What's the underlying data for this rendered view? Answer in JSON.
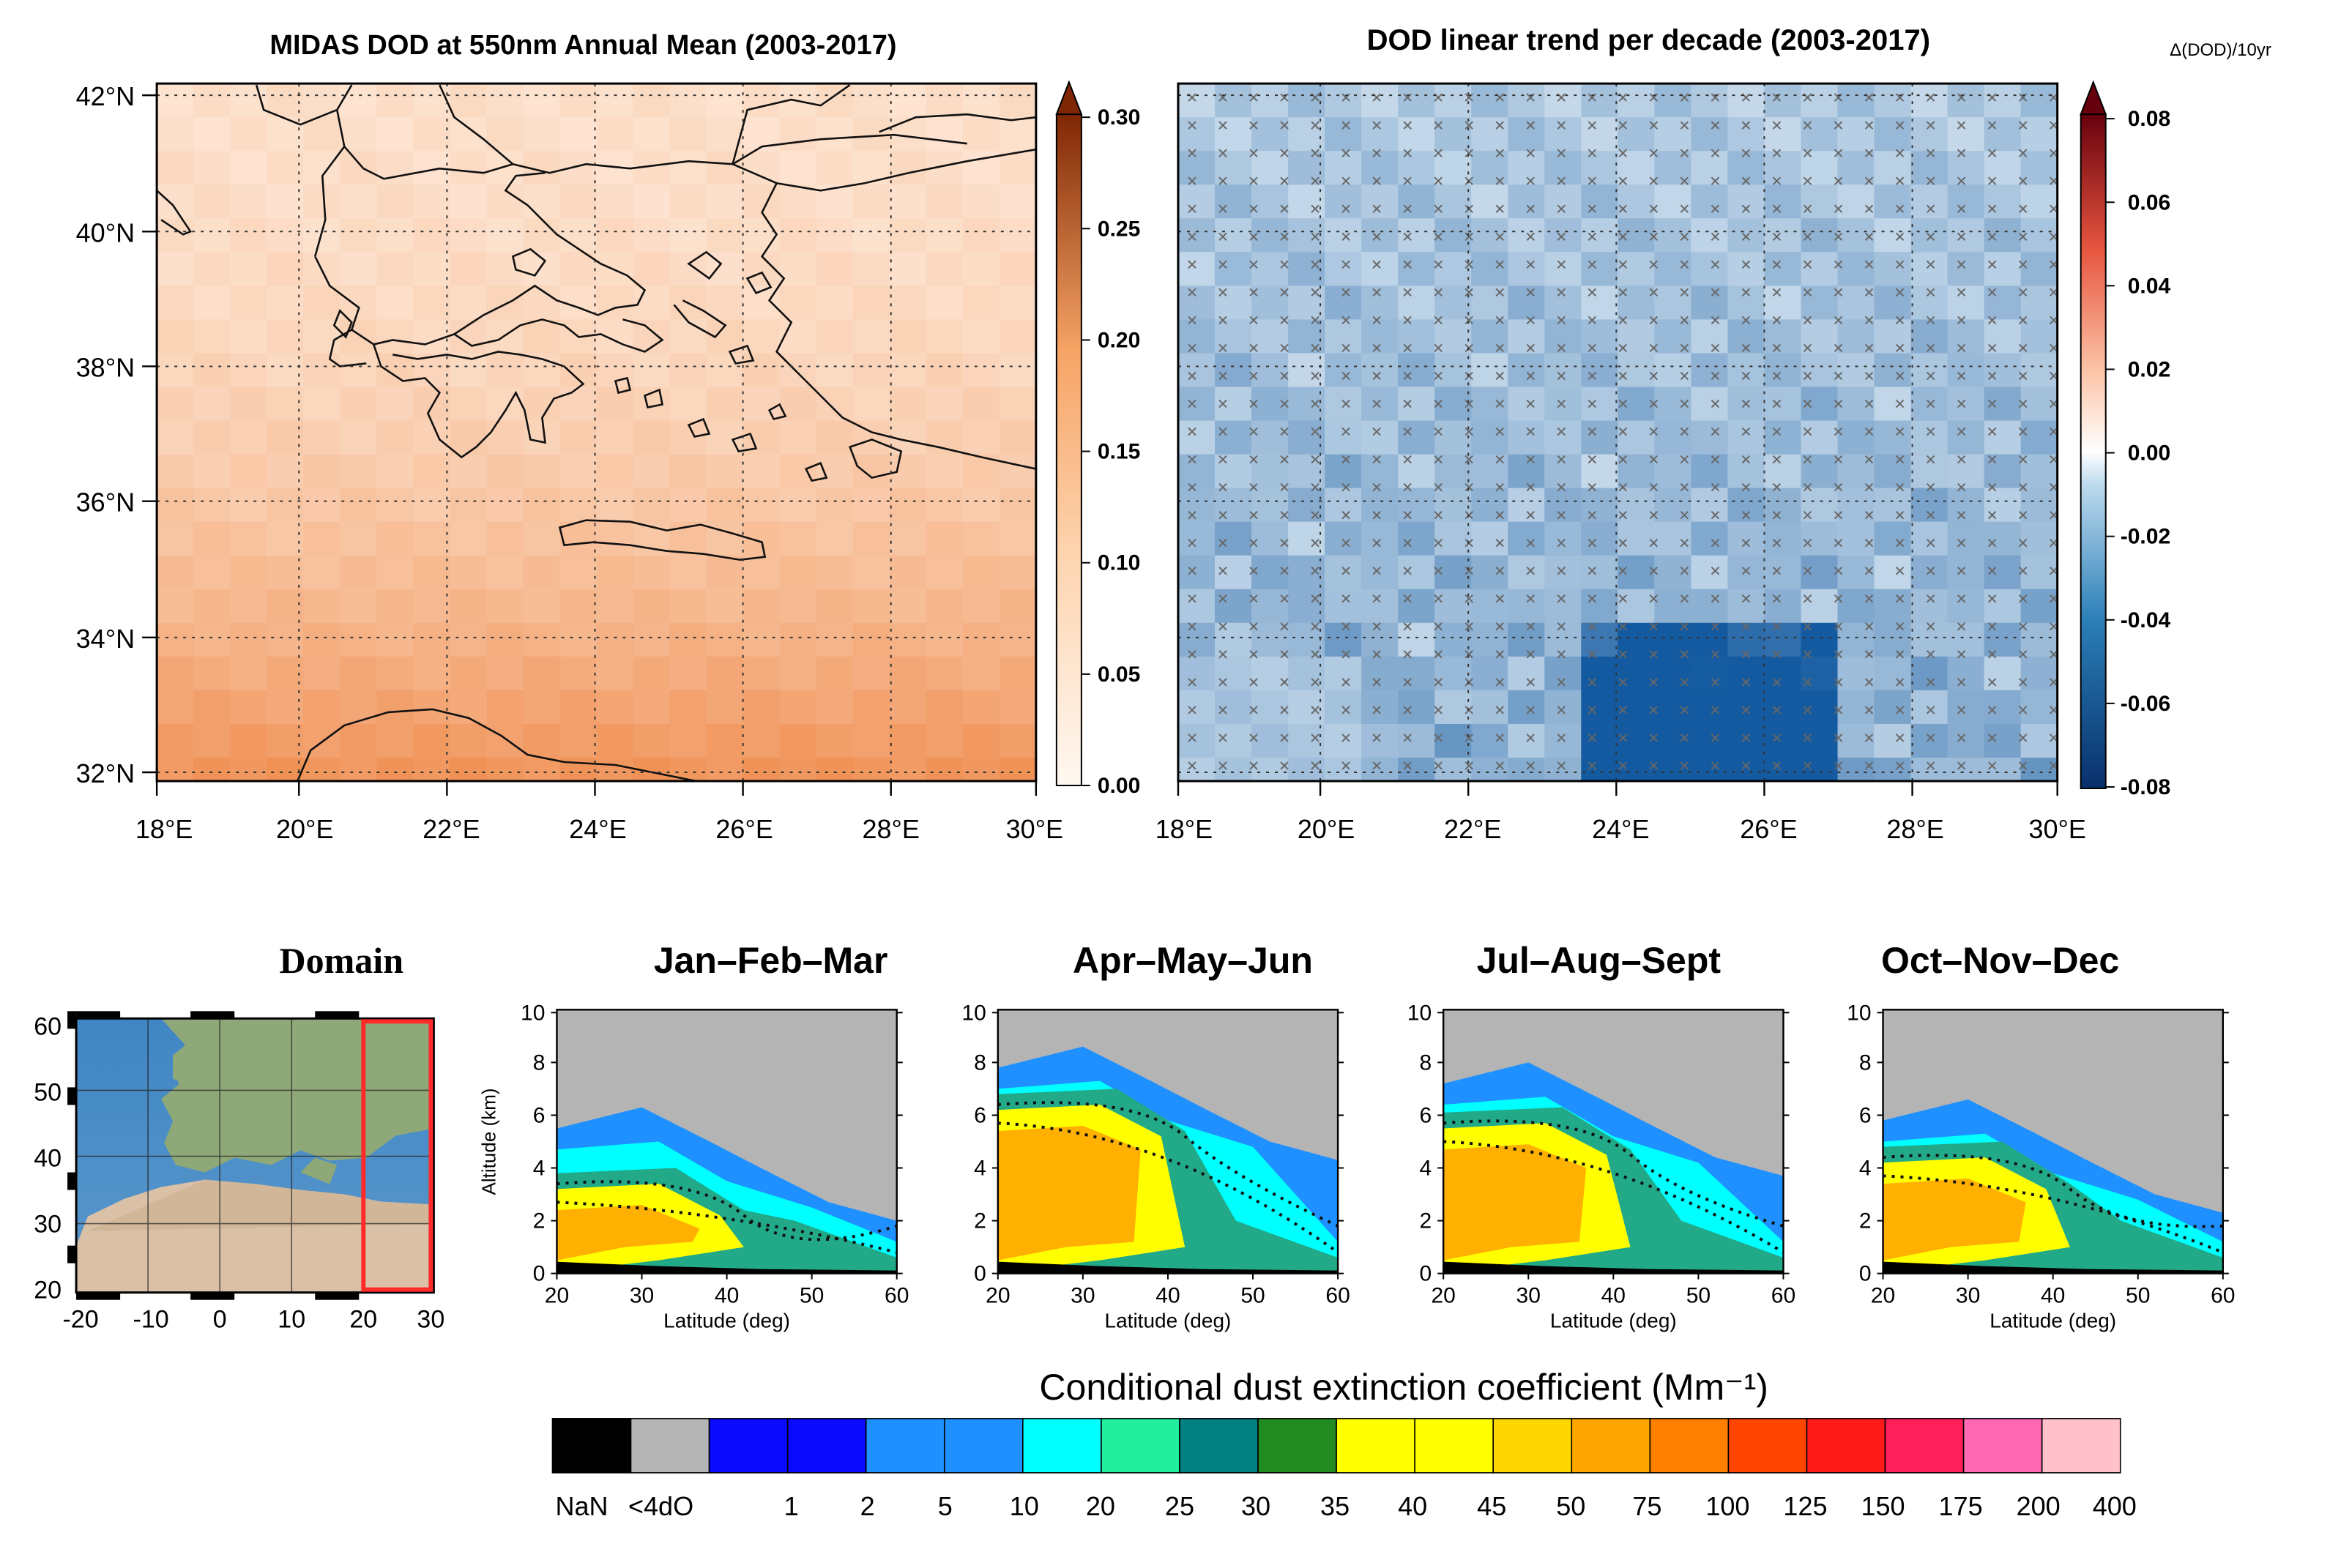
{
  "figure": {
    "colors": {
      "orange_low": "#fff3e8",
      "orange_mid": "#fbc79b",
      "orange_high": "#e8792f",
      "blue_low": "#edf5fa",
      "blue_mid": "#6cb2da",
      "blue_high": "#0b4c8c"
    }
  },
  "panel_a": {
    "title": "MIDAS DOD at 550nm Annual Mean (2003-2017)",
    "lat_labels": [
      "42°N",
      "40°N",
      "38°N",
      "36°N",
      "34°N",
      "32°N"
    ],
    "lon_labels": [
      "18°E",
      "20°E",
      "22°E",
      "24°E",
      "26°E",
      "28°E",
      "30°E"
    ],
    "colorbar_ticks": [
      "0.00",
      "0.05",
      "0.10",
      "0.15",
      "0.20",
      "0.25",
      "0.30"
    ]
  },
  "panel_b": {
    "title": "DOD linear trend per decade (2003-2017)",
    "unit": "Δ(DOD)/10yr",
    "lon_labels": [
      "18°E",
      "20°E",
      "22°E",
      "24°E",
      "26°E",
      "28°E",
      "30°E"
    ],
    "colorbar_ticks": [
      "-0.08",
      "-0.06",
      "-0.04",
      "-0.02",
      "0.00",
      "0.02",
      "0.04",
      "0.06",
      "0.08"
    ]
  },
  "domain_panel": {
    "title": "Domain",
    "lat_labels": [
      "60",
      "50",
      "40",
      "30",
      "20"
    ],
    "lon_labels": [
      "-20",
      "-10",
      "0",
      "10",
      "20",
      "30"
    ],
    "box_color": "#ff2b2b"
  },
  "profiles": {
    "ylabel": "Altitude (km)",
    "xlabel": "Latitude (deg)",
    "y_ticks": [
      "10",
      "8",
      "6",
      "4",
      "2",
      "0"
    ],
    "x_ticks": [
      "20",
      "30",
      "40",
      "50",
      "60"
    ],
    "panels": [
      {
        "title": "Jan–Feb–Mar"
      },
      {
        "title": "Apr–May–Jun"
      },
      {
        "title": "Jul–Aug–Sept"
      },
      {
        "title": "Oct–Nov–Dec"
      }
    ]
  },
  "legend": {
    "title": "Conditional dust extinction coefficient (Mm⁻¹)",
    "labels": [
      "NaN",
      "<4dO",
      "1",
      "2",
      "5",
      "10",
      "20",
      "25",
      "30",
      "35",
      "40",
      "45",
      "50",
      "75",
      "100",
      "125",
      "150",
      "175",
      "200",
      "400"
    ],
    "colors": [
      "#000000",
      "#b4b4b4",
      "#0a0aff",
      "#0a0aff",
      "#1e90ff",
      "#1e90ff",
      "#00ffff",
      "#22eea0",
      "#008080",
      "#228b22",
      "#ffff00",
      "#ffff00",
      "#ffd700",
      "#ffa500",
      "#ff7f00",
      "#ff4500",
      "#ff1a1a",
      "#ff1f5a",
      "#ff69b4",
      "#ffc0cb"
    ]
  }
}
